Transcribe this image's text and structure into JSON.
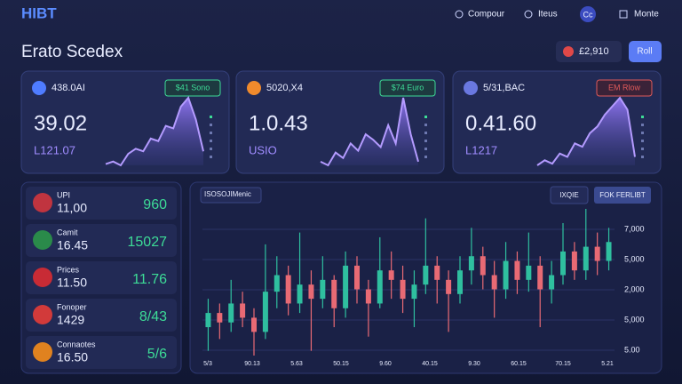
{
  "header": {
    "logo": "HIBT",
    "nav": [
      "Compour",
      "Iteus",
      "Cc",
      "Monte"
    ]
  },
  "title": "Erato Scedex",
  "balance": "£2,910",
  "button": "Roll",
  "cards": [
    {
      "label": "438.0AI",
      "badge": "$41 Sono",
      "value": "39.02",
      "sub": "L121.07",
      "spark": [
        10,
        12,
        9,
        18,
        22,
        20,
        30,
        28,
        40,
        38,
        55,
        62,
        45,
        20
      ]
    },
    {
      "label": "5020,X4",
      "badge": "$74 Euro",
      "value": "1.0.43",
      "sub": "USIO",
      "spark": [
        20,
        18,
        25,
        22,
        30,
        26,
        35,
        32,
        28,
        40,
        30,
        55,
        35,
        20
      ]
    },
    {
      "label": "5/31,BAC",
      "badge": "EM Rlow",
      "value": "0.41.60",
      "sub": "L1217",
      "spark": [
        15,
        18,
        16,
        22,
        20,
        28,
        26,
        34,
        38,
        45,
        50,
        55,
        48,
        20
      ]
    }
  ],
  "markets": [
    {
      "name": "UPI",
      "value": "11,00",
      "change": "960"
    },
    {
      "name": "Camit",
      "value": "16.45",
      "change": "15027"
    },
    {
      "name": "Prices",
      "value": "11.50",
      "change": "11.76"
    },
    {
      "name": "Fonoper",
      "value": "1429",
      "change": "8/43"
    },
    {
      "name": "Connaotes",
      "value": "16.50",
      "change": "5/6"
    }
  ],
  "main_chart": {
    "title": "ISOSOJIMenic",
    "buttons": [
      "IXQIE",
      "FOK FERLIBT"
    ],
    "y_labels": [
      "7,000",
      "5,000",
      "2,000",
      "5,000",
      "5.00"
    ],
    "x_labels": [
      "5/3",
      "90.13",
      "5.63",
      "50.15",
      "9.60",
      "40.15",
      "9.30",
      "60.15",
      "70.15",
      "5.21"
    ],
    "candles": [
      {
        "o": 40,
        "c": 46,
        "h": 52,
        "l": 30
      },
      {
        "o": 46,
        "c": 42,
        "h": 50,
        "l": 35
      },
      {
        "o": 42,
        "c": 50,
        "h": 60,
        "l": 38
      },
      {
        "o": 50,
        "c": 44,
        "h": 55,
        "l": 40
      },
      {
        "o": 44,
        "c": 38,
        "h": 48,
        "l": 28
      },
      {
        "o": 38,
        "c": 55,
        "h": 75,
        "l": 35
      },
      {
        "o": 55,
        "c": 62,
        "h": 70,
        "l": 48
      },
      {
        "o": 62,
        "c": 50,
        "h": 66,
        "l": 45
      },
      {
        "o": 50,
        "c": 58,
        "h": 80,
        "l": 46
      },
      {
        "o": 58,
        "c": 52,
        "h": 64,
        "l": 30
      },
      {
        "o": 52,
        "c": 60,
        "h": 70,
        "l": 48
      },
      {
        "o": 60,
        "c": 48,
        "h": 62,
        "l": 40
      },
      {
        "o": 48,
        "c": 66,
        "h": 72,
        "l": 44
      },
      {
        "o": 66,
        "c": 56,
        "h": 70,
        "l": 50
      },
      {
        "o": 56,
        "c": 50,
        "h": 60,
        "l": 36
      },
      {
        "o": 50,
        "c": 64,
        "h": 78,
        "l": 48
      },
      {
        "o": 64,
        "c": 60,
        "h": 72,
        "l": 52
      },
      {
        "o": 60,
        "c": 52,
        "h": 66,
        "l": 46
      },
      {
        "o": 52,
        "c": 58,
        "h": 64,
        "l": 40
      },
      {
        "o": 58,
        "c": 66,
        "h": 86,
        "l": 54
      },
      {
        "o": 66,
        "c": 60,
        "h": 70,
        "l": 50
      },
      {
        "o": 60,
        "c": 54,
        "h": 64,
        "l": 38
      },
      {
        "o": 54,
        "c": 64,
        "h": 70,
        "l": 50
      },
      {
        "o": 64,
        "c": 70,
        "h": 82,
        "l": 58
      },
      {
        "o": 70,
        "c": 62,
        "h": 74,
        "l": 56
      },
      {
        "o": 62,
        "c": 56,
        "h": 68,
        "l": 44
      },
      {
        "o": 56,
        "c": 68,
        "h": 76,
        "l": 52
      },
      {
        "o": 68,
        "c": 60,
        "h": 72,
        "l": 54
      },
      {
        "o": 60,
        "c": 66,
        "h": 80,
        "l": 55
      },
      {
        "o": 66,
        "c": 56,
        "h": 70,
        "l": 40
      },
      {
        "o": 56,
        "c": 62,
        "h": 68,
        "l": 50
      },
      {
        "o": 62,
        "c": 72,
        "h": 84,
        "l": 58
      },
      {
        "o": 72,
        "c": 64,
        "h": 76,
        "l": 60
      },
      {
        "o": 64,
        "c": 74,
        "h": 90,
        "l": 60
      },
      {
        "o": 74,
        "c": 68,
        "h": 80,
        "l": 62
      },
      {
        "o": 68,
        "c": 76,
        "h": 82,
        "l": 64
      }
    ]
  }
}
